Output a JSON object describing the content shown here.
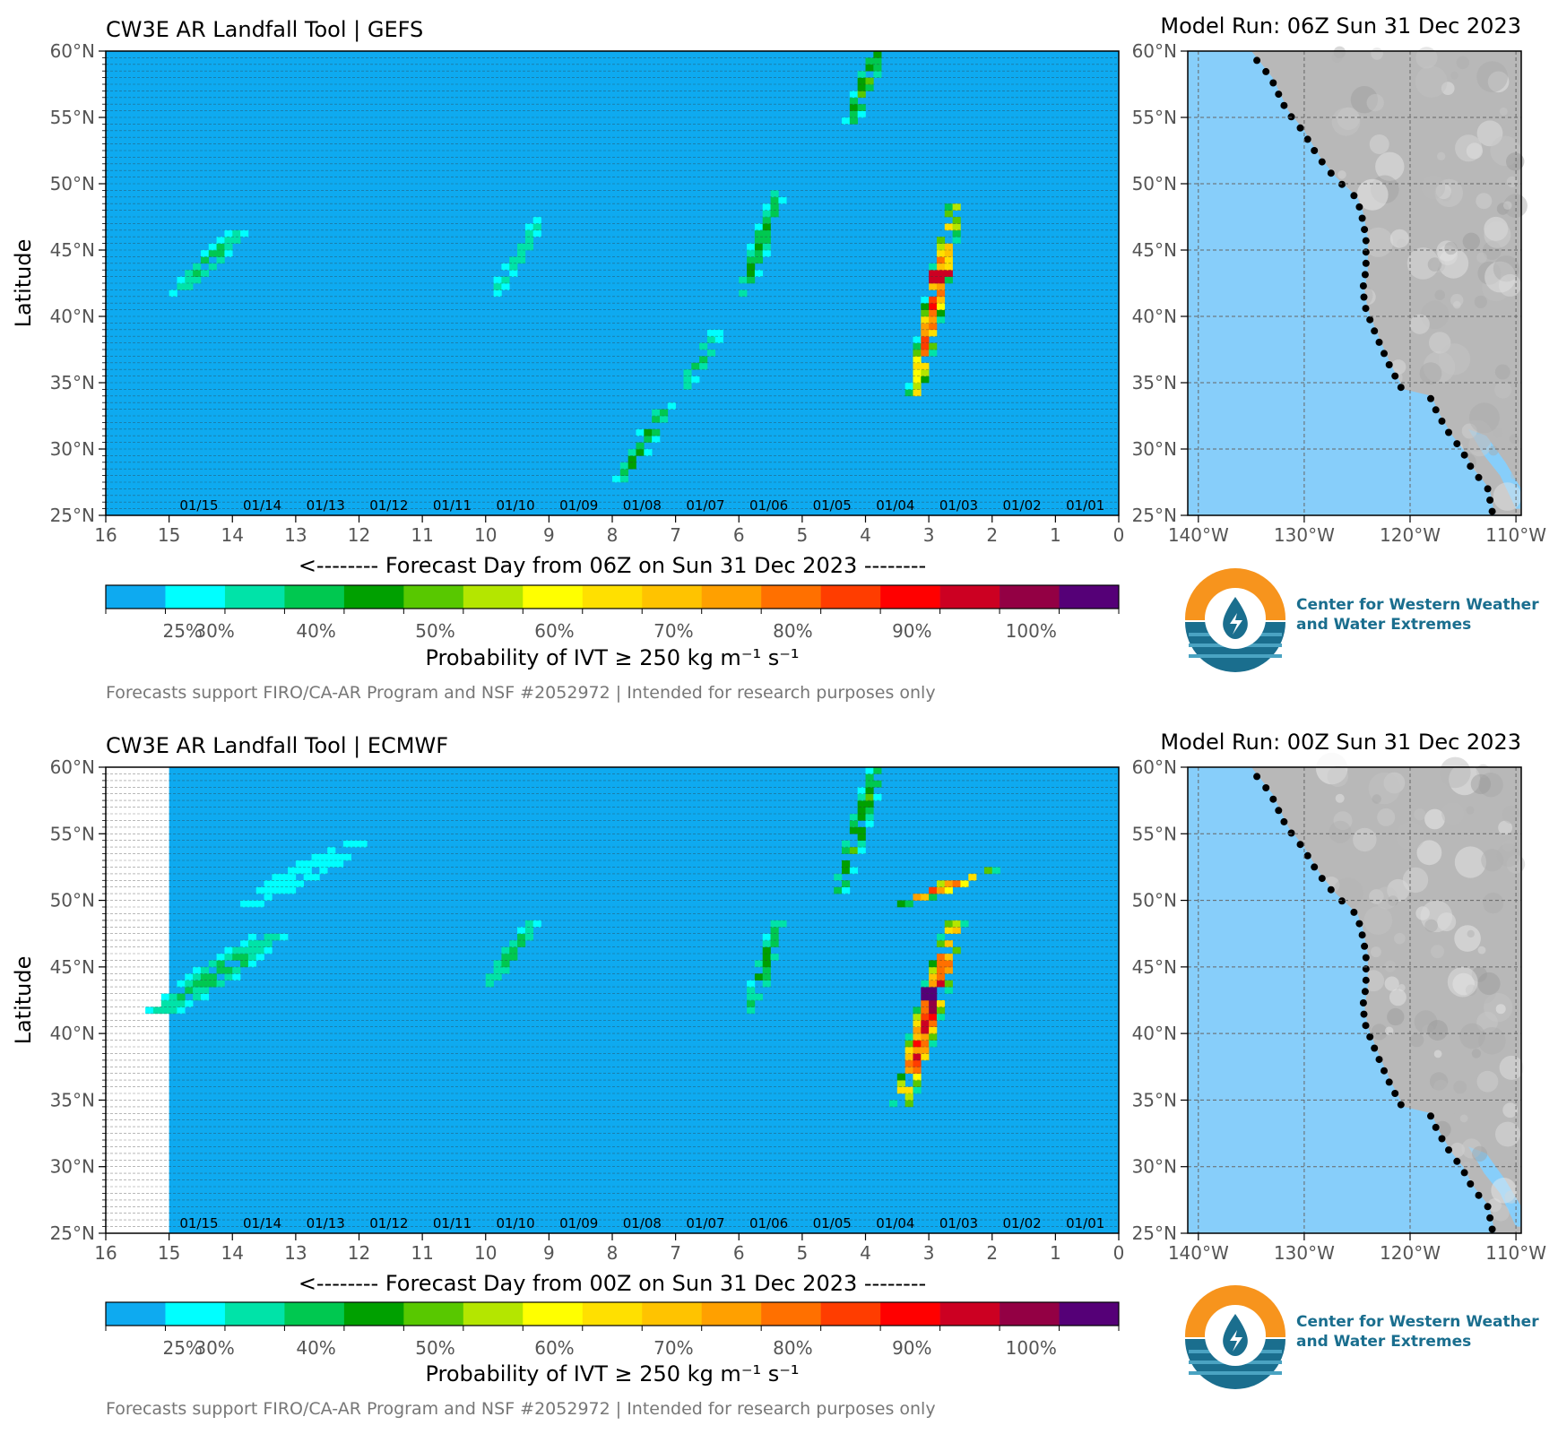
{
  "panels": [
    {
      "title": "CW3E AR Landfall Tool | GEFS",
      "model_run": "Model Run: 06Z Sun 31 Dec 2023",
      "xlabel": "<-------- Forecast Day from 06Z on Sun 31 Dec 2023 --------",
      "ylabel": "Latitude",
      "no_data_before_day": null
    },
    {
      "title": "CW3E AR Landfall Tool | ECMWF",
      "model_run": "Model Run: 00Z Sun 31 Dec 2023",
      "xlabel": "<-------- Forecast Day from 00Z on Sun 31 Dec 2023 --------",
      "ylabel": "Latitude",
      "no_data_before_day": 15
    }
  ],
  "x_ticks": [
    "16",
    "15",
    "14",
    "13",
    "12",
    "11",
    "10",
    "9",
    "8",
    "7",
    "6",
    "5",
    "4",
    "3",
    "2",
    "1",
    "0"
  ],
  "y_ticks": [
    "25°N",
    "30°N",
    "35°N",
    "40°N",
    "45°N",
    "50°N",
    "55°N",
    "60°N"
  ],
  "date_labels": [
    "01/15",
    "01/14",
    "01/13",
    "01/12",
    "01/11",
    "01/10",
    "01/09",
    "01/08",
    "01/07",
    "01/06",
    "01/05",
    "01/04",
    "01/03",
    "01/02",
    "01/01"
  ],
  "map": {
    "lon_ticks": [
      "140°W",
      "130°W",
      "120°W",
      "110°W"
    ],
    "lat_ticks": [
      "25°N",
      "30°N",
      "35°N",
      "40°N",
      "45°N",
      "50°N",
      "55°N",
      "60°N"
    ],
    "ocean_color": "#87cefa",
    "land_color": "#b8b8b8"
  },
  "colorbar": {
    "label": "Probability of IVT ≥ 250 kg m⁻¹ s⁻¹",
    "colors": [
      "#0eaaf0",
      "#00ffff",
      "#00e3a8",
      "#00c850",
      "#00a000",
      "#58c800",
      "#b4e600",
      "#ffff00",
      "#ffe000",
      "#ffc300",
      "#ffa000",
      "#ff7000",
      "#ff3d00",
      "#ff0000",
      "#cc0022",
      "#930044",
      "#550077"
    ],
    "tick_labels": [
      "25%",
      "30%",
      "40%",
      "50%",
      "60%",
      "70%",
      "80%",
      "90%",
      "100%"
    ]
  },
  "footer": "Forecasts support FIRO/CA-AR Program and NSF #2052972 | Intended for research purposes only",
  "logo": {
    "line1": "Center for Western Weather",
    "line2": "and Water Extremes"
  },
  "chart_data": [
    {
      "type": "heatmap",
      "title": "CW3E AR Landfall Tool | GEFS",
      "xlabel": "<-------- Forecast Day from 06Z on Sun 31 Dec 2023 --------",
      "ylabel": "Latitude",
      "x_range": [
        16,
        0
      ],
      "y_range": [
        25,
        60
      ],
      "value_label": "Probability of IVT ≥ 250 kg m⁻¹ s⁻¹",
      "features": [
        {
          "day": [
            3.2,
            2.6
          ],
          "lat": [
            34.5,
            48
          ],
          "peak_pct": 90,
          "peak_lat": 43
        },
        {
          "day": [
            5.9,
            5.4
          ],
          "lat": [
            42,
            49
          ],
          "peak_pct": 45
        },
        {
          "day": [
            4.2,
            3.8
          ],
          "lat": [
            55,
            60
          ],
          "peak_pct": 50
        },
        {
          "day": [
            7.8,
            7.2
          ],
          "lat": [
            28,
            33
          ],
          "peak_pct": 45
        },
        {
          "day": [
            6.8,
            6.4
          ],
          "lat": [
            35,
            38.5
          ],
          "peak_pct": 40
        },
        {
          "day": [
            14.8,
            14.0
          ],
          "lat": [
            42,
            46
          ],
          "peak_pct": 40
        },
        {
          "day": [
            9.8,
            9.2
          ],
          "lat": [
            42,
            47
          ],
          "peak_pct": 35
        }
      ]
    },
    {
      "type": "heatmap",
      "title": "CW3E AR Landfall Tool | ECMWF",
      "xlabel": "<-------- Forecast Day from 00Z on Sun 31 Dec 2023 --------",
      "ylabel": "Latitude",
      "x_range": [
        16,
        0
      ],
      "y_range": [
        25,
        60
      ],
      "value_label": "Probability of IVT ≥ 250 kg m⁻¹ s⁻¹",
      "features": [
        {
          "day": [
            3.4,
            2.6
          ],
          "lat": [
            35,
            48
          ],
          "peak_pct": 100,
          "peak_lat": 43
        },
        {
          "day": [
            3.3,
            2.2
          ],
          "lat": [
            50,
            52
          ],
          "peak_pct": 90
        },
        {
          "day": [
            4.4,
            3.8
          ],
          "lat": [
            51,
            60
          ],
          "peak_pct": 50
        },
        {
          "day": [
            5.8,
            5.4
          ],
          "lat": [
            42,
            48
          ],
          "peak_pct": 45
        },
        {
          "day": [
            15.0,
            13.5
          ],
          "lat": [
            42,
            47
          ],
          "peak_pct": 40
        },
        {
          "day": [
            9.9,
            9.3
          ],
          "lat": [
            44,
            48
          ],
          "peak_pct": 40
        },
        {
          "day": [
            13.6,
            12.2
          ],
          "lat": [
            50,
            54
          ],
          "peak_pct": 30
        }
      ]
    }
  ]
}
